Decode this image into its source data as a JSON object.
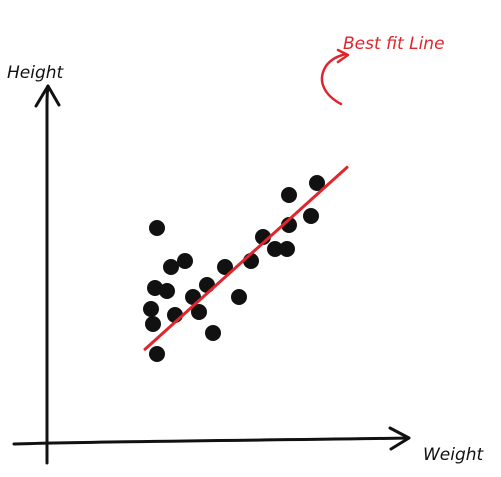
{
  "chart_data": {
    "type": "scatter",
    "xlabel": "Weight",
    "ylabel": "Height",
    "annotation": "Best fit Line",
    "grid": false,
    "colors": {
      "points": "#111111",
      "fit_line": "#e0262c",
      "axes": "#111111",
      "annotation": "#e0262c"
    },
    "points": [
      {
        "x": 5.5,
        "y": 7.2
      },
      {
        "x": 5.4,
        "y": 5.2
      },
      {
        "x": 5.2,
        "y": 4.5
      },
      {
        "x": 5.3,
        "y": 4.0
      },
      {
        "x": 5.5,
        "y": 3.0
      },
      {
        "x": 6.0,
        "y": 5.1
      },
      {
        "x": 6.4,
        "y": 4.3
      },
      {
        "x": 6.2,
        "y": 5.9
      },
      {
        "x": 6.9,
        "y": 6.1
      },
      {
        "x": 7.3,
        "y": 4.9
      },
      {
        "x": 7.6,
        "y": 4.4
      },
      {
        "x": 8.0,
        "y": 5.3
      },
      {
        "x": 8.3,
        "y": 3.7
      },
      {
        "x": 8.9,
        "y": 5.9
      },
      {
        "x": 9.6,
        "y": 4.9
      },
      {
        "x": 10.2,
        "y": 6.1
      },
      {
        "x": 10.8,
        "y": 6.9
      },
      {
        "x": 11.4,
        "y": 6.5
      },
      {
        "x": 12.0,
        "y": 6.5
      },
      {
        "x": 12.1,
        "y": 7.3
      },
      {
        "x": 12.1,
        "y": 8.3
      },
      {
        "x": 13.2,
        "y": 7.6
      },
      {
        "x": 13.5,
        "y": 8.7
      }
    ],
    "fit_line": {
      "slope": 0.6,
      "intercept": 0.22,
      "x_start": 4.9,
      "x_end": 15.0
    },
    "xlim": [
      0,
      18
    ],
    "ylim": [
      0,
      12
    ]
  }
}
